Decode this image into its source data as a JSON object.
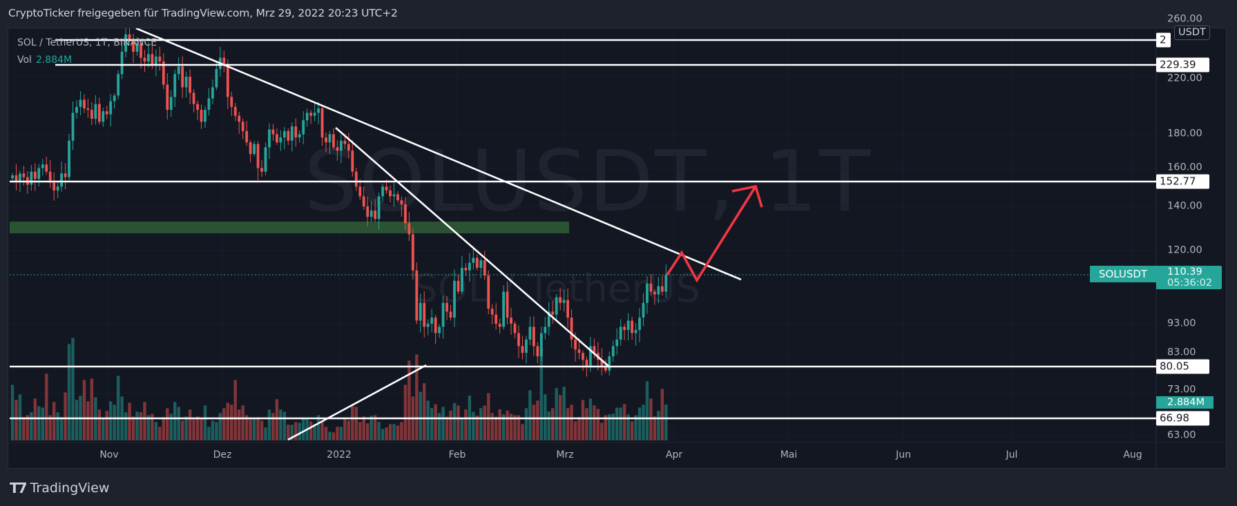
{
  "header": {
    "text": "CryptoTicker freigegeben für TradingView.com, Mrz 29, 2022 20:23 UTC+2"
  },
  "legend": {
    "symbol_line": "SOL / TetherUS, 1T, BINANCE",
    "vol_label": "Vol",
    "vol_value": "2.884M"
  },
  "watermark": {
    "line1": "SOLUSDT, 1T",
    "line2": "SOL / TetherUS"
  },
  "price_axis": {
    "currency": "USDT",
    "ticks": [
      {
        "value": 260,
        "label": "260.00"
      },
      {
        "value": 220,
        "label": "220.00"
      },
      {
        "value": 180,
        "label": "180.00"
      },
      {
        "value": 160,
        "label": "160.00"
      },
      {
        "value": 140,
        "label": "140.00"
      },
      {
        "value": 120,
        "label": "120.00"
      },
      {
        "value": 93,
        "label": "93.00"
      },
      {
        "value": 83,
        "label": "83.00"
      },
      {
        "value": 73,
        "label": "73.00"
      },
      {
        "value": 63,
        "label": "63.00"
      }
    ],
    "scale": "log",
    "level_labels": [
      {
        "label": "2"
      },
      {
        "value": 229.39,
        "label": "229.39"
      },
      {
        "value": 152.77,
        "label": "152.77"
      },
      {
        "value": 80.05,
        "label": "80.05"
      },
      {
        "value": 66.98,
        "label": "66.98"
      }
    ],
    "symbol_badge": "SOLUSDT",
    "last_price": "110.39",
    "countdown": "05:36:02",
    "volume_badge": "2.884M"
  },
  "time_axis": {
    "labels": [
      "Nov",
      "Dez",
      "2022",
      "Feb",
      "Mrz",
      "Apr",
      "Mai",
      "Jun",
      "Jul",
      "Aug"
    ]
  },
  "footer": {
    "logo_text": "TradingView"
  },
  "colors": {
    "up": "#26a69a",
    "down": "#ef5350",
    "drawing": "#ffffff",
    "arrow": "#f23645",
    "zone": "#2a5233",
    "background": "#131722"
  },
  "chart_data": {
    "type": "candlestick",
    "symbol": "SOL / TetherUS, 1T, BINANCE",
    "interval": "1 day",
    "yscale": "log",
    "close": [
      156,
      153,
      157,
      155,
      151,
      158,
      154,
      160,
      162,
      158,
      152,
      148,
      150,
      157,
      155,
      176,
      194,
      198,
      203,
      197,
      196,
      190,
      200,
      188,
      195,
      193,
      202,
      206,
      222,
      240,
      255,
      251,
      240,
      247,
      235,
      232,
      238,
      229,
      236,
      232,
      214,
      196,
      205,
      222,
      228,
      212,
      220,
      208,
      200,
      196,
      188,
      196,
      204,
      212,
      226,
      235,
      230,
      205,
      198,
      192,
      188,
      182,
      175,
      168,
      174,
      160,
      158,
      172,
      183,
      180,
      175,
      178,
      182,
      176,
      185,
      178,
      180,
      189,
      194,
      192,
      194,
      197,
      178,
      175,
      180,
      172,
      170,
      176,
      174,
      170,
      158,
      150,
      145,
      140,
      135,
      138,
      134,
      145,
      150,
      148,
      145,
      146,
      143,
      141,
      132,
      127,
      112,
      94,
      100,
      92,
      93,
      95,
      90,
      92,
      100,
      97,
      95,
      108,
      104,
      113,
      112,
      115,
      117,
      113,
      116,
      110,
      98,
      96,
      93,
      92,
      104,
      95,
      93,
      90,
      86,
      84,
      88,
      92,
      86,
      83,
      90,
      92,
      97,
      96,
      102,
      100,
      101,
      95,
      88,
      85,
      84,
      82,
      80,
      86,
      84,
      82,
      80,
      79,
      83,
      86,
      88,
      92,
      91,
      94,
      90,
      91,
      95,
      100,
      107,
      104,
      103,
      106,
      104,
      110.39
    ],
    "volume_millions": [
      4.47,
      3.25,
      3.7,
      1.87,
      2.03,
      2.26,
      3.36,
      2.75,
      2.64,
      5.36,
      2.03,
      3.09,
      2.26,
      1.87,
      3.86,
      7.74,
      8.24,
      3.25,
      3.59,
      4.86,
      3.14,
      4.97,
      3.47,
      2.48,
      1.76,
      2.37,
      3.14,
      2.87,
      5.19,
      3.53,
      2.26,
      3.03,
      1.92,
      2.31,
      2.26,
      3.09,
      2.03,
      2.14,
      1.48,
      1.09,
      1.87,
      2.59,
      2.14,
      3.09,
      2.7,
      1.59,
      1.92,
      2.48,
      1.7,
      1.92,
      1.81,
      2.81,
      1.09,
      1.59,
      1.48,
      2.2,
      2.59,
      3.03,
      2.87,
      4.86,
      2.48,
      2.81,
      2.03,
      1.7,
      1.7,
      1.87,
      1.59,
      1.04,
      2.48,
      2.2,
      3.31,
      2.48,
      2.31,
      1.26,
      1.26,
      1.48,
      1.42,
      1.76,
      1.7,
      1.53,
      1.31,
      2.03,
      1.59,
      1.09,
      0.7,
      0.65,
      1.09,
      1.09,
      1.7,
      1.59,
      2.75,
      2.7,
      1.48,
      1.92,
      1.37,
      1.98,
      2.03,
      1.48,
      0.92,
      1.04,
      1.31,
      1.31,
      1.2,
      1.48,
      4.47,
      6.41,
      3.53,
      6.91,
      3.9,
      4.6,
      3.2,
      2.6,
      2.9,
      2.2,
      2.7,
      1.9,
      2.4,
      3.0,
      2.8,
      1.8,
      2.5,
      3.6,
      2.3,
      2.0,
      2.6,
      2.8,
      3.8,
      2.2,
      1.9,
      2.5,
      2.1,
      2.4,
      2.14,
      2.03,
      2.03,
      1.31,
      2.59,
      4.03,
      2.87,
      3.2,
      7.4,
      3.7,
      2.33,
      2.59,
      4.2,
      3.64,
      4.31,
      2.59,
      2.87,
      1.53,
      1.87,
      3.25,
      2.59,
      3.36,
      2.81,
      2.53,
      1.42,
      2.03,
      2.09,
      2.14,
      2.64,
      2.64,
      2.92,
      2.09,
      1.53,
      2.03,
      2.64,
      2.87,
      4.75,
      3.36,
      1.92,
      2.37,
      4.14,
      2.884
    ],
    "horizontal_levels": [
      229.39,
      152.77,
      80.05,
      66.98
    ],
    "last_price": 110.39
  }
}
